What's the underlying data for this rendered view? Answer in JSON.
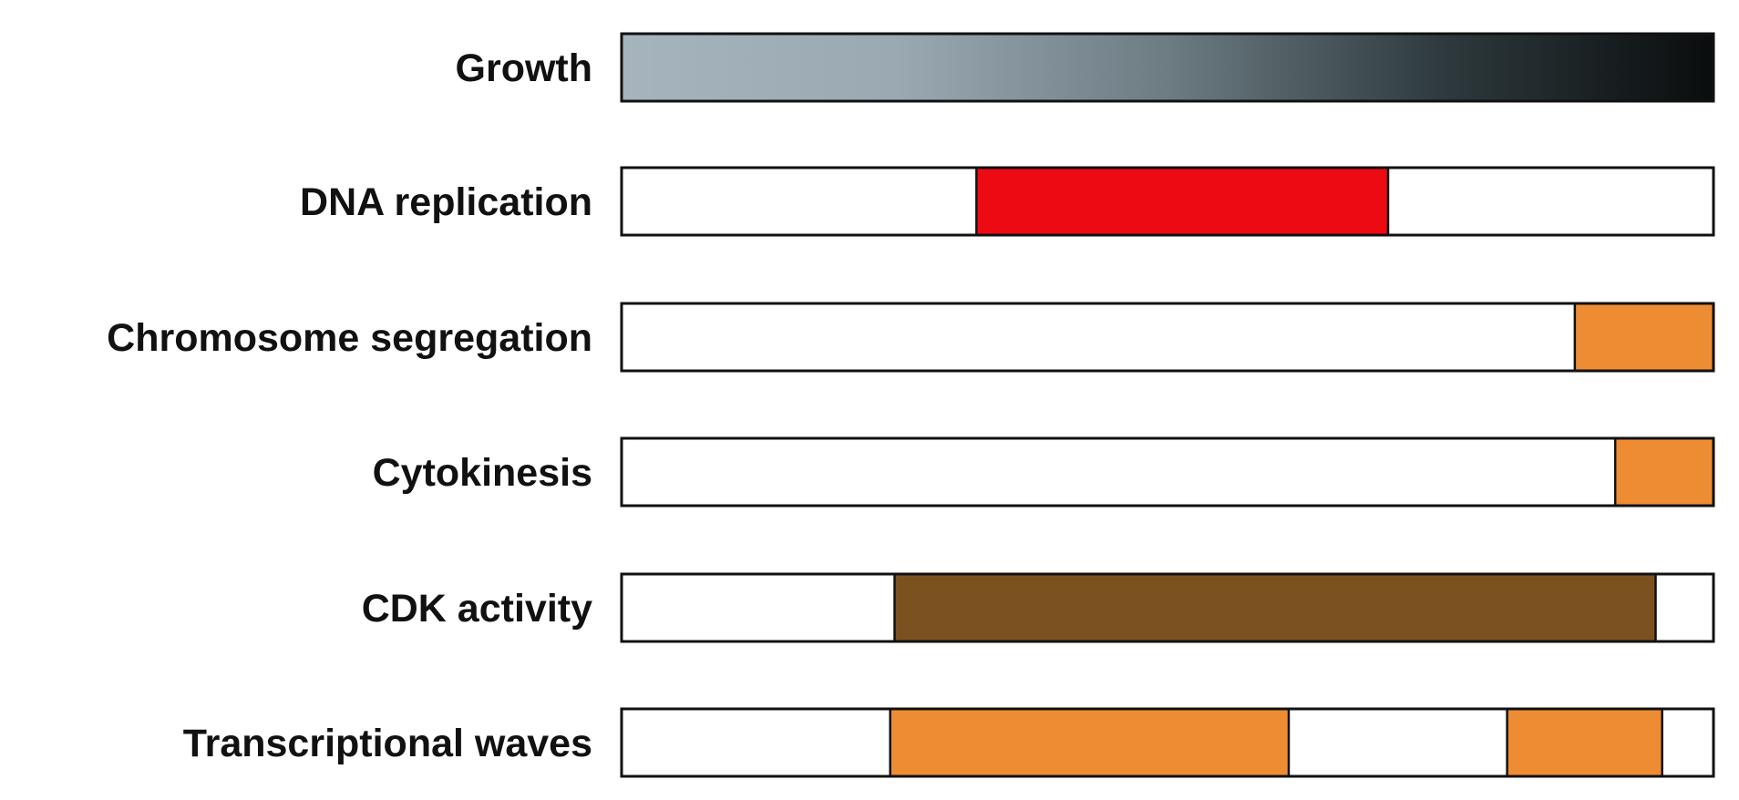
{
  "diagram": {
    "domain_range": [
      0,
      1
    ],
    "growth_gradient": [
      "#a6b4bc",
      "#9aa9b2",
      "#6d7c83",
      "#2e3a3e",
      "#0a0d0e"
    ],
    "rows": [
      {
        "id": "growth",
        "label": "Growth",
        "type": "gradient",
        "segments": []
      },
      {
        "id": "dna-replication",
        "label": "DNA replication",
        "type": "segments",
        "segments": [
          {
            "start": 0.325,
            "end": 0.702,
            "color": "#ee0a13"
          }
        ]
      },
      {
        "id": "chromosome-segregation",
        "label": "Chromosome segregation",
        "type": "segments",
        "segments": [
          {
            "start": 0.873,
            "end": 1.0,
            "color": "#ee8c34"
          }
        ]
      },
      {
        "id": "cytokinesis",
        "label": "Cytokinesis",
        "type": "segments",
        "segments": [
          {
            "start": 0.91,
            "end": 1.0,
            "color": "#ee8c34"
          }
        ]
      },
      {
        "id": "cdk-activity",
        "label": "CDK activity",
        "type": "segments",
        "segments": [
          {
            "start": 0.25,
            "end": 0.947,
            "color": "#7c5120"
          }
        ]
      },
      {
        "id": "transcriptional-waves",
        "label": "Transcriptional waves",
        "type": "segments",
        "segments": [
          {
            "start": 0.246,
            "end": 0.611,
            "color": "#ee8c34"
          },
          {
            "start": 0.811,
            "end": 0.953,
            "color": "#ee8c34"
          }
        ]
      }
    ]
  }
}
